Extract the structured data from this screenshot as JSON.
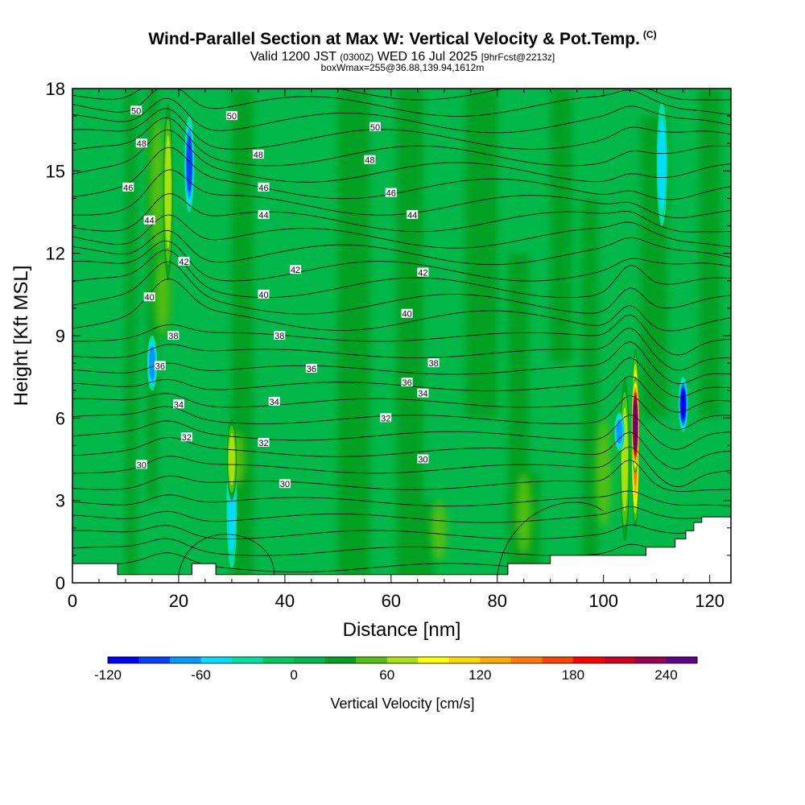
{
  "title": "Wind-Parallel Section at Max W: Vertical Velocity & Pot.Temp.",
  "title_mark": "(C)",
  "subtitle_pre": "Valid 1200 JST",
  "subtitle_utc": "(0300Z)",
  "subtitle_date": "WED 16 Jul 2025",
  "subtitle_fcst": "[9hrFcst@2213z]",
  "note": "boxWmax=255@36.88,139.94,1612m",
  "chart_data": {
    "type": "heatmap",
    "xlabel": "Distance [nm]",
    "ylabel": "Height [Kft MSL]",
    "xlim": [
      0,
      124
    ],
    "ylim": [
      0,
      18
    ],
    "x_ticks": [
      0,
      20,
      40,
      60,
      80,
      100,
      120
    ],
    "y_ticks": [
      0,
      3,
      6,
      9,
      12,
      15,
      18
    ],
    "background_color": "#00b84a",
    "colorbar": {
      "label": "Vertical Velocity [cm/s]",
      "tick_values": [
        -120,
        -60,
        0,
        60,
        120,
        180,
        240
      ],
      "min": -120,
      "step": 20,
      "colors": [
        "#0000ff",
        "#0044ff",
        "#0099ff",
        "#00ddff",
        "#00e0a0",
        "#00c860",
        "#00b84a",
        "#00a020",
        "#55c010",
        "#a8e010",
        "#ffff00",
        "#ffd800",
        "#ffaa00",
        "#ff7a00",
        "#ff4400",
        "#ff0000",
        "#cc0022",
        "#990055",
        "#660088"
      ]
    },
    "velocity_features": [
      {
        "kind": "updraft",
        "x": 18,
        "y_range": [
          11,
          17.5
        ],
        "w": 60
      },
      {
        "kind": "downdraft",
        "x": 22,
        "y_range": [
          13.5,
          17
        ],
        "w": -80
      },
      {
        "kind": "downdraft",
        "x": 30,
        "y_range": [
          0.5,
          5
        ],
        "w": -40
      },
      {
        "kind": "updraft",
        "x": 30,
        "y_range": [
          3,
          6
        ],
        "w": 60
      },
      {
        "kind": "downdraft",
        "x": 15,
        "y_range": [
          7,
          9
        ],
        "w": -60
      },
      {
        "kind": "updraft",
        "x": 104,
        "y_range": [
          1.5,
          7.5
        ],
        "w": 60
      },
      {
        "kind": "updraft",
        "x": 106,
        "y_range": [
          2,
          8.5
        ],
        "w": 140
      },
      {
        "kind": "updraft",
        "x": 106,
        "y_range": [
          4,
          7.5
        ],
        "w": 255
      },
      {
        "kind": "downdraft",
        "x": 103,
        "y_range": [
          4.8,
          6.2
        ],
        "w": -60
      },
      {
        "kind": "downdraft",
        "x": 115,
        "y_range": [
          5.5,
          7.5
        ],
        "w": -100
      },
      {
        "kind": "downdraft",
        "x": 111,
        "y_range": [
          13,
          17.5
        ],
        "w": -40
      }
    ],
    "theta_labels": [
      {
        "value": "50",
        "x": 12,
        "y": 17.2
      },
      {
        "value": "50",
        "x": 30,
        "y": 17.0
      },
      {
        "value": "50",
        "x": 57,
        "y": 16.6
      },
      {
        "value": "48",
        "x": 13,
        "y": 16.0
      },
      {
        "value": "48",
        "x": 35,
        "y": 15.6
      },
      {
        "value": "48",
        "x": 56,
        "y": 15.4
      },
      {
        "value": "46",
        "x": 10.5,
        "y": 14.4
      },
      {
        "value": "46",
        "x": 36,
        "y": 14.4
      },
      {
        "value": "46",
        "x": 60,
        "y": 14.2
      },
      {
        "value": "44",
        "x": 14.5,
        "y": 13.2
      },
      {
        "value": "44",
        "x": 36,
        "y": 13.4
      },
      {
        "value": "44",
        "x": 64,
        "y": 13.4
      },
      {
        "value": "42",
        "x": 21,
        "y": 11.7
      },
      {
        "value": "42",
        "x": 42,
        "y": 11.4
      },
      {
        "value": "42",
        "x": 66,
        "y": 11.3
      },
      {
        "value": "40",
        "x": 14.5,
        "y": 10.4
      },
      {
        "value": "40",
        "x": 36,
        "y": 10.5
      },
      {
        "value": "40",
        "x": 63,
        "y": 9.8
      },
      {
        "value": "38",
        "x": 19,
        "y": 9.0
      },
      {
        "value": "38",
        "x": 39,
        "y": 9.0
      },
      {
        "value": "38",
        "x": 68,
        "y": 8.0
      },
      {
        "value": "36",
        "x": 16.5,
        "y": 7.9
      },
      {
        "value": "36",
        "x": 45,
        "y": 7.8
      },
      {
        "value": "36",
        "x": 63,
        "y": 7.3
      },
      {
        "value": "34",
        "x": 20,
        "y": 6.5
      },
      {
        "value": "34",
        "x": 38,
        "y": 6.6
      },
      {
        "value": "34",
        "x": 66,
        "y": 6.9
      },
      {
        "value": "32",
        "x": 21.5,
        "y": 5.3
      },
      {
        "value": "32",
        "x": 36,
        "y": 5.1
      },
      {
        "value": "32",
        "x": 59,
        "y": 6.0
      },
      {
        "value": "30",
        "x": 13,
        "y": 4.3
      },
      {
        "value": "30",
        "x": 40,
        "y": 3.6
      },
      {
        "value": "30",
        "x": 66,
        "y": 4.5
      }
    ],
    "terrain": [
      [
        0,
        0.7
      ],
      [
        8.5,
        0.7
      ],
      [
        8.5,
        0.3
      ],
      [
        22.5,
        0.3
      ],
      [
        22.5,
        0.7
      ],
      [
        27,
        0.7
      ],
      [
        27,
        0.3
      ],
      [
        82,
        0.3
      ],
      [
        82,
        0.7
      ],
      [
        90,
        0.7
      ],
      [
        90,
        1
      ],
      [
        108,
        1
      ],
      [
        108,
        1.3
      ],
      [
        113.5,
        1.3
      ],
      [
        113.5,
        1.6
      ],
      [
        115.5,
        1.6
      ],
      [
        115.5,
        1.9
      ],
      [
        117,
        1.9
      ],
      [
        117,
        2.2
      ],
      [
        118.5,
        2.2
      ],
      [
        118.5,
        2.4
      ],
      [
        124,
        2.4
      ]
    ]
  }
}
